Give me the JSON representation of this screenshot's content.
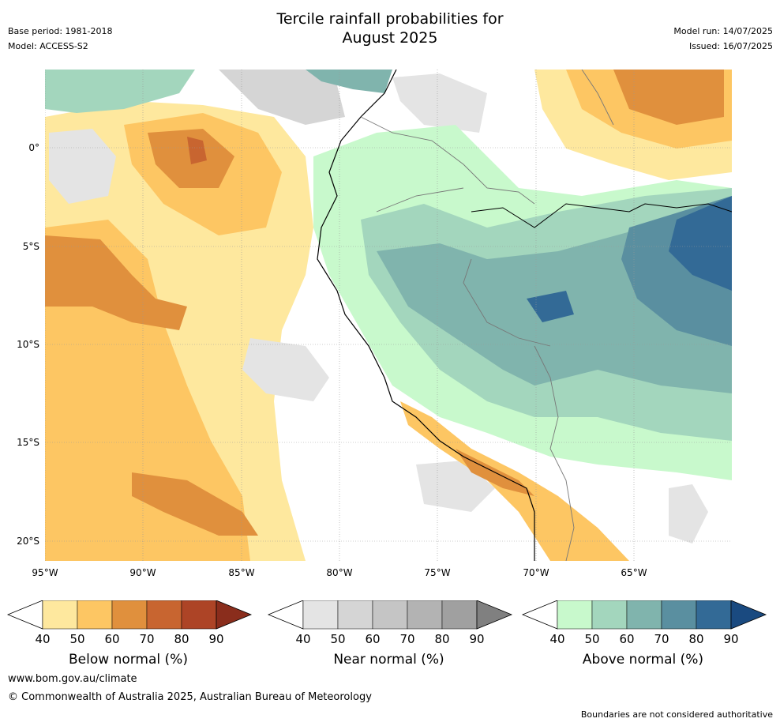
{
  "title_line1": "Tercile rainfall probabilities for",
  "title_line2": "August 2025",
  "base_period": "Base period: 1981-2018",
  "model": "Model: ACCESS-S2",
  "model_run": "Model run: 14/07/2025",
  "issued": "Issued: 16/07/2025",
  "lat_labels": [
    "0°",
    "5°S",
    "10°S",
    "15°S",
    "20°S"
  ],
  "lon_labels": [
    "95°W",
    "90°W",
    "85°W",
    "80°W",
    "75°W",
    "70°W",
    "65°W"
  ],
  "colorbars": [
    {
      "label": "Below normal (%)",
      "ticks": [
        "40",
        "50",
        "60",
        "70",
        "80",
        "90"
      ],
      "colors": [
        "#fee89e",
        "#fdc663",
        "#e0903d",
        "#c86530",
        "#ad4426",
        "#8a2d1c"
      ]
    },
    {
      "label": "Near normal (%)",
      "ticks": [
        "40",
        "50",
        "60",
        "70",
        "80",
        "90"
      ],
      "colors": [
        "#e4e4e4",
        "#d5d5d5",
        "#c5c5c5",
        "#b3b3b3",
        "#a0a0a0",
        "#808080"
      ]
    },
    {
      "label": "Above normal (%)",
      "ticks": [
        "40",
        "50",
        "60",
        "70",
        "80",
        "90"
      ],
      "colors": [
        "#c8f9cc",
        "#a3d6bd",
        "#80b4ad",
        "#5a8fa0",
        "#336a96",
        "#1a4a80"
      ]
    }
  ],
  "footer_url": "www.bom.gov.au/climate",
  "copyright": "© Commonwealth of Australia 2025, Australian Bureau of Meteorology",
  "disclaimer": "Boundaries are not considered authoritative"
}
